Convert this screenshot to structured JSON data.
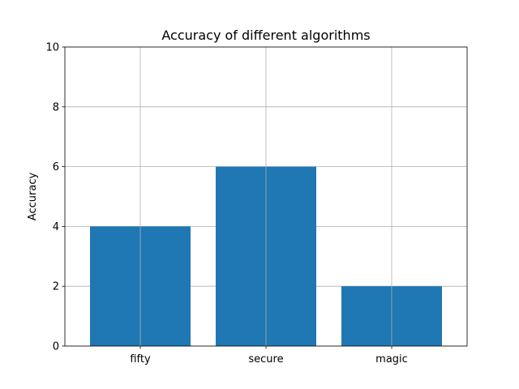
{
  "chart_data": {
    "type": "bar",
    "title": "Accuracy of different algorithms",
    "xlabel": "",
    "ylabel": "Accuracy",
    "categories": [
      "fifty",
      "secure",
      "magic"
    ],
    "values": [
      4,
      6,
      2
    ],
    "ylim": [
      0,
      10
    ],
    "yticks": [
      0,
      2,
      4,
      6,
      8,
      10
    ],
    "grid": true,
    "bar_color": "#1f77b4"
  }
}
